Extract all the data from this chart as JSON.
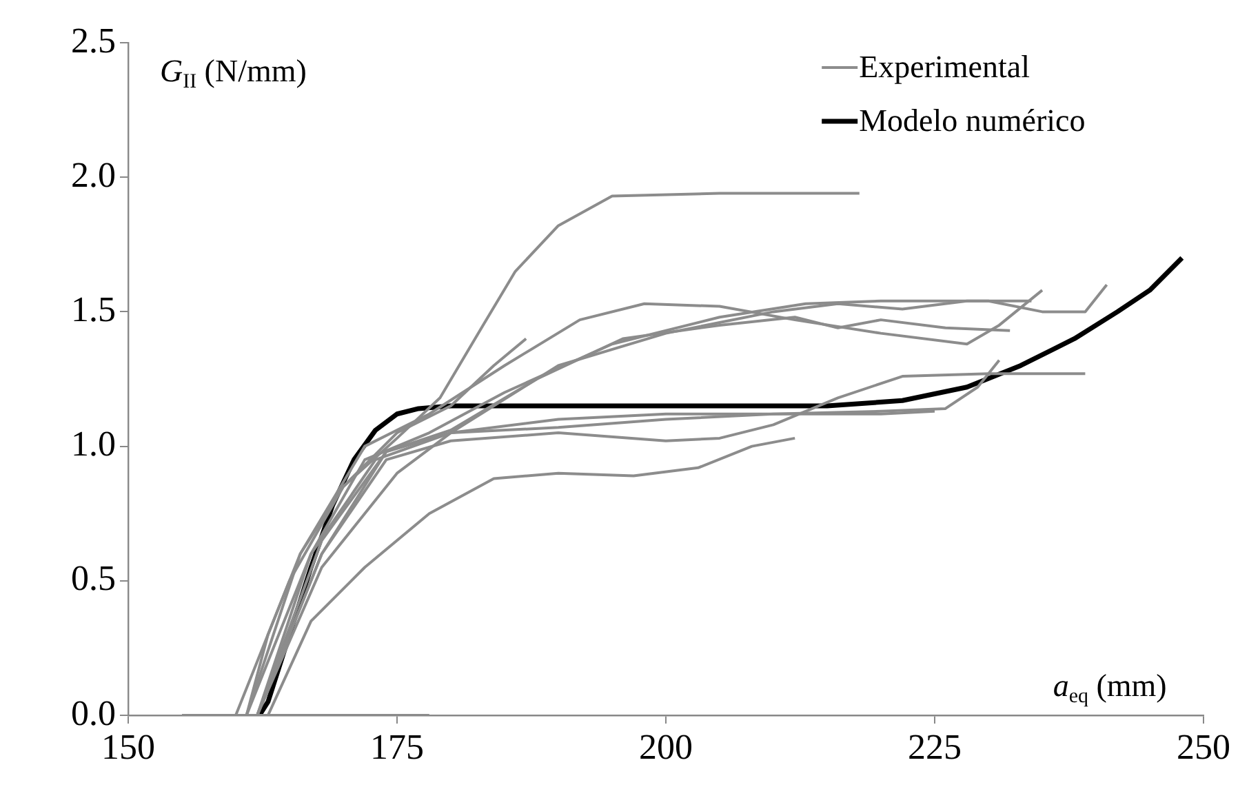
{
  "chart_data": {
    "type": "line",
    "xlabel": "a$_{eq}$ (mm)",
    "ylabel": "G$_{II}$ (N/mm)",
    "legend": "top right",
    "xlim": [
      150,
      250
    ],
    "xticks": [
      150,
      175,
      200,
      225,
      250
    ],
    "ylim": [
      0,
      2.5
    ],
    "yticks": [
      {
        "value": 0,
        "label": "0.0"
      },
      0.5,
      {
        "value": 1,
        "label": "1.0"
      },
      1.5,
      {
        "value": 2,
        "label": "2.0"
      },
      2.5
    ],
    "series": [
      {
        "name": "Experimental",
        "color": "#8c8c8c",
        "x": [
          161,
          163,
          166,
          170,
          175,
          179,
          183,
          186,
          190,
          195,
          205,
          212,
          218
        ],
        "values": [
          0,
          0.3,
          0.6,
          0.85,
          1.03,
          1.18,
          1.45,
          1.65,
          1.82,
          1.93,
          1.94,
          1.94,
          1.94
        ]
      },
      {
        "color": "#8c8c8c",
        "x": [
          160,
          165,
          170,
          175,
          180,
          184,
          187
        ],
        "values": [
          0,
          0.5,
          0.85,
          1.05,
          1.15,
          1.3,
          1.4
        ]
      },
      {
        "color": "#8c8c8c",
        "x": [
          161,
          166,
          172,
          178,
          185,
          192,
          198,
          205,
          212,
          220,
          228,
          231,
          235
        ],
        "values": [
          0,
          0.6,
          1,
          1.12,
          1.3,
          1.47,
          1.53,
          1.52,
          1.47,
          1.42,
          1.38,
          1.45,
          1.58
        ]
      },
      {
        "color": "#8c8c8c",
        "x": [
          162,
          167,
          172,
          178,
          185,
          195,
          205,
          213,
          220,
          230,
          235,
          239,
          241
        ],
        "values": [
          0,
          0.6,
          0.95,
          1.05,
          1.2,
          1.38,
          1.48,
          1.53,
          1.54,
          1.54,
          1.5,
          1.5,
          1.6
        ]
      },
      {
        "color": "#8c8c8c",
        "x": [
          162,
          168,
          174,
          180,
          188,
          196,
          205,
          212,
          216,
          220,
          226,
          232
        ],
        "values": [
          0,
          0.6,
          0.98,
          1.06,
          1.25,
          1.4,
          1.45,
          1.48,
          1.44,
          1.47,
          1.44,
          1.43
        ]
      },
      {
        "color": "#8c8c8c",
        "x": [
          161,
          167,
          173,
          180,
          190,
          200,
          210,
          216,
          222,
          228,
          234
        ],
        "values": [
          0,
          0.6,
          0.95,
          1.05,
          1.3,
          1.42,
          1.5,
          1.53,
          1.51,
          1.54,
          1.54
        ]
      },
      {
        "color": "#8c8c8c",
        "x": [
          162,
          168,
          174,
          180,
          190,
          200,
          210,
          220,
          226,
          229,
          231
        ],
        "values": [
          0,
          0.65,
          0.98,
          1.05,
          1.07,
          1.1,
          1.12,
          1.13,
          1.14,
          1.22,
          1.32
        ]
      },
      {
        "color": "#8c8c8c",
        "x": [
          162,
          168,
          174,
          180,
          190,
          200,
          205,
          210,
          216,
          222,
          230,
          239
        ],
        "values": [
          0,
          0.6,
          0.95,
          1.02,
          1.05,
          1.02,
          1.03,
          1.08,
          1.18,
          1.26,
          1.27,
          1.27
        ]
      },
      {
        "color": "#8c8c8c",
        "x": [
          162,
          168,
          175,
          180,
          190,
          200,
          210,
          220,
          225
        ],
        "values": [
          0,
          0.55,
          0.9,
          1.05,
          1.1,
          1.12,
          1.12,
          1.12,
          1.13
        ]
      },
      {
        "color": "#8c8c8c",
        "x": [
          163,
          167,
          172,
          178,
          184,
          190,
          197,
          203,
          208,
          212
        ],
        "values": [
          0,
          0.35,
          0.55,
          0.75,
          0.88,
          0.9,
          0.89,
          0.92,
          1,
          1.03
        ]
      },
      {
        "color": "#8c8c8c",
        "x": [
          155,
          178
        ],
        "values": [
          0,
          0
        ]
      },
      {
        "name": "Modelo numérico",
        "color": "#000000",
        "x": [
          162.2,
          163,
          165,
          167,
          169,
          171,
          173,
          175,
          177,
          180,
          200,
          215,
          222,
          228,
          233,
          238,
          242,
          245,
          248
        ],
        "values": [
          0,
          0.05,
          0.3,
          0.55,
          0.78,
          0.95,
          1.06,
          1.12,
          1.14,
          1.15,
          1.15,
          1.15,
          1.17,
          1.22,
          1.3,
          1.4,
          1.5,
          1.58,
          1.7
        ]
      }
    ]
  }
}
